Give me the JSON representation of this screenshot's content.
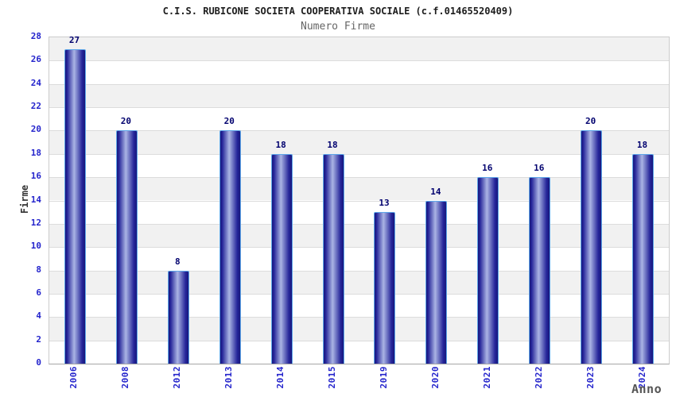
{
  "chart_data": {
    "type": "bar",
    "title": "C.I.S. RUBICONE SOCIETA COOPERATIVA SOCIALE (c.f.01465520409)",
    "subtitle": "Numero Firme",
    "xlabel": "Anno",
    "ylabel": "Firme",
    "categories": [
      "2006",
      "2008",
      "2012",
      "2013",
      "2014",
      "2015",
      "2019",
      "2020",
      "2021",
      "2022",
      "2023",
      "2024"
    ],
    "values": [
      27,
      20,
      8,
      20,
      18,
      18,
      13,
      14,
      16,
      16,
      20,
      18
    ],
    "ylim": [
      0,
      28
    ],
    "ytick_step": 2,
    "yticks": [
      0,
      2,
      4,
      6,
      8,
      10,
      12,
      14,
      16,
      18,
      20,
      22,
      24,
      26,
      28
    ],
    "grid": "horizontal-bands-alternating",
    "legend": "none",
    "bar_labels_shown": true
  },
  "colors": {
    "tick_label_blue": "#2424cc",
    "bar_value_navy": "#00006e",
    "bar_dark": "#17177c",
    "bar_mid": "#26269a",
    "bar_light": "#aab4e4",
    "bar_border_lightblue": "#5ea7e9",
    "band_gray": "#f1f1f1",
    "band_white": "#ffffff",
    "gridline": "#dcdcdc",
    "title_color": "#1c1c1c",
    "subtitle_color": "#666666"
  }
}
